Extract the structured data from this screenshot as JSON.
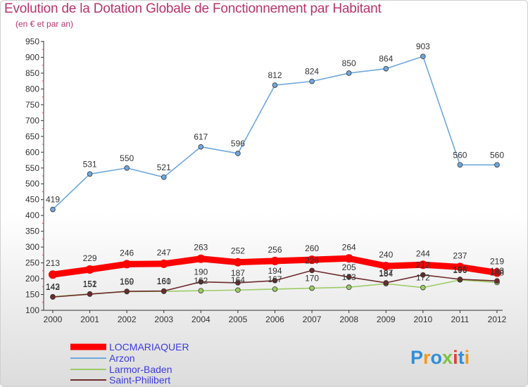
{
  "title": "Evolution de la Dotation Globale de Fonctionnement par Habitant",
  "subtitle": "(en € et par an)",
  "logo_text": "Proxiti",
  "chart_data": {
    "type": "line",
    "title": "Evolution de la Dotation Globale de Fonctionnement par Habitant",
    "subtitle": "(en € et par an)",
    "x": [
      "2000",
      "2001",
      "2002",
      "2003",
      "2004",
      "2005",
      "2006",
      "2007",
      "2008",
      "2009",
      "2010",
      "2011",
      "2012"
    ],
    "ylim": [
      100,
      950
    ],
    "yticks": [
      100,
      150,
      200,
      250,
      300,
      350,
      400,
      450,
      500,
      550,
      600,
      650,
      700,
      750,
      800,
      850,
      900,
      950
    ],
    "grid": false,
    "legend_position": "bottom-left",
    "series": [
      {
        "name": "LOCMARIAQUER",
        "color": "#ff0000",
        "values": [
          213,
          229,
          246,
          247,
          263,
          252,
          256,
          260,
          264,
          240,
          244,
          237,
          219
        ],
        "labels": [
          "213",
          "229",
          "246",
          "247",
          "263",
          "252",
          "256",
          "260",
          "264",
          "240",
          "244",
          "237",
          "219"
        ]
      },
      {
        "name": "Arzon",
        "color": "#6fa8dc",
        "values": [
          419,
          531,
          550,
          521,
          617,
          596,
          812,
          824,
          850,
          864,
          903,
          560,
          560
        ],
        "labels": [
          "419",
          "531",
          "550",
          "521",
          "617",
          "596",
          "812",
          "824",
          "850",
          "864",
          "903",
          "560",
          "560"
        ]
      },
      {
        "name": "Larmor-Baden",
        "color": "#9ccc65",
        "values": [
          143,
          152,
          159,
          160,
          162,
          164,
          167,
          170,
          173,
          184,
          172,
          196,
          188
        ],
        "labels": [
          "143",
          "152",
          "159",
          "160",
          "162",
          "164",
          "167",
          "170",
          "173",
          "184",
          "172",
          "196",
          "188"
        ]
      },
      {
        "name": "Saint-Philibert",
        "color": "#6d2b2b",
        "values": [
          142,
          151,
          160,
          161,
          190,
          187,
          194,
          226,
          205,
          187,
          212,
          198,
          193
        ],
        "labels": [
          "142",
          "151",
          "160",
          "161",
          "190",
          "187",
          "194",
          "226",
          "205",
          "187",
          "212",
          "198",
          "193"
        ]
      }
    ]
  }
}
